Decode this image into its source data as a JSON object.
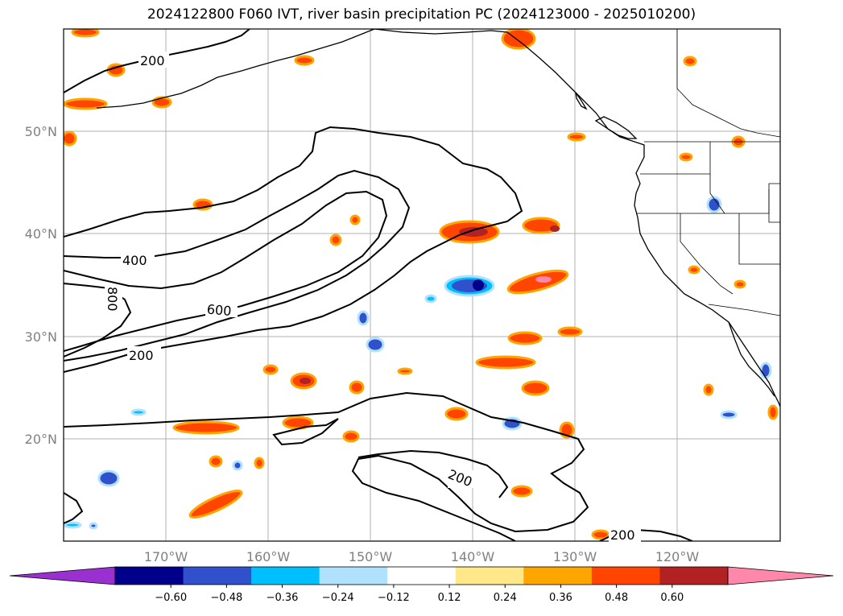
{
  "title": "2024122800 F060 IVT, river basin precipitation PC (2024123000 - 2025010200)",
  "map": {
    "lat_labels": [
      "50°N",
      "40°N",
      "30°N",
      "20°N"
    ],
    "lon_labels": [
      "170°W",
      "160°W",
      "150°W",
      "140°W",
      "130°W",
      "120°W"
    ],
    "contour_labels": [
      "200",
      "400",
      "800",
      "600",
      "200",
      "200",
      "200"
    ],
    "grid": true,
    "extent": {
      "lon": [
        -180,
        -110
      ],
      "lat": [
        10,
        60
      ]
    }
  },
  "colorbar": {
    "ticks": [
      "−0.60",
      "−0.48",
      "−0.36",
      "−0.24",
      "−0.12",
      "0.12",
      "0.24",
      "0.36",
      "0.48",
      "0.60"
    ],
    "colors": [
      "#9b30d0",
      "#00008b",
      "#3050cc",
      "#00bfff",
      "#b0e2ff",
      "#ffffff",
      "#ffe88a",
      "#ffa500",
      "#ff4500",
      "#b22222",
      "#ff88aa"
    ],
    "extend": "both"
  }
}
